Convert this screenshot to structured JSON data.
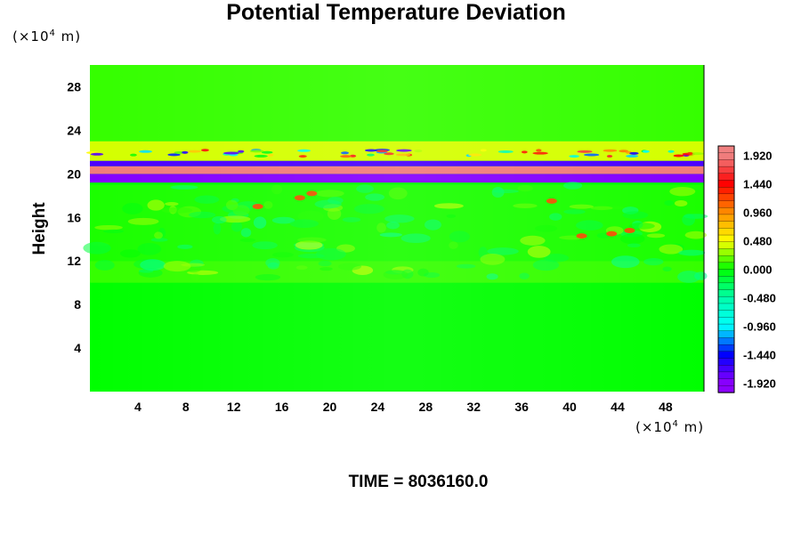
{
  "chart_data": {
    "type": "heatmap",
    "title": "Potential Temperature Deviation",
    "xlabel": "",
    "ylabel": "Height",
    "x_unit": "(×10⁴ m)",
    "y_unit": "(×10⁴ m)",
    "footer": "TIME = 8036160.0",
    "xlim": [
      0,
      51.2
    ],
    "ylim": [
      0,
      30
    ],
    "x_ticks": [
      "4",
      "8",
      "12",
      "16",
      "20",
      "24",
      "28",
      "32",
      "36",
      "40",
      "44",
      "48"
    ],
    "x_tick_values": [
      4,
      8,
      12,
      16,
      20,
      24,
      28,
      32,
      36,
      40,
      44,
      48
    ],
    "y_ticks": [
      "4",
      "8",
      "12",
      "16",
      "20",
      "24",
      "28"
    ],
    "y_tick_values": [
      4,
      8,
      12,
      16,
      20,
      24,
      28
    ],
    "colorbar": {
      "labels": [
        "1.920",
        "1.440",
        "0.960",
        "0.480",
        "0.000",
        "-0.480",
        "-0.960",
        "-1.440",
        "-1.920"
      ],
      "values": [
        1.92,
        1.44,
        0.96,
        0.48,
        0.0,
        -0.48,
        -0.96,
        -1.44,
        -1.92
      ],
      "colors_top_to_bottom": [
        "#f08080",
        "#ff0000",
        "#ff8c00",
        "#ffff00",
        "#00ff00",
        "#00ffaa",
        "#00ffff",
        "#0000ff",
        "#8b00ff"
      ]
    },
    "field_description": [
      {
        "y_range": [
          0,
          10
        ],
        "value": 0.0
      },
      {
        "y_range": [
          10,
          12
        ],
        "value": 0.1
      },
      {
        "y_range": [
          12,
          19
        ],
        "value": 0.05
      },
      {
        "y_range": [
          19.2,
          20
        ],
        "value": -1.9
      },
      {
        "y_range": [
          20,
          20.7
        ],
        "value": 1.9
      },
      {
        "y_range": [
          20.7,
          21.2
        ],
        "value": -1.7
      },
      {
        "y_range": [
          21.2,
          23
        ],
        "value": 0.4
      },
      {
        "y_range": [
          23,
          30
        ],
        "value": 0.1
      }
    ]
  },
  "units": {
    "y_prefix": "(×10",
    "y_exp": "4",
    "y_suffix": " m)",
    "x_prefix": "(×10",
    "x_exp": "4",
    "x_suffix": " m)"
  }
}
